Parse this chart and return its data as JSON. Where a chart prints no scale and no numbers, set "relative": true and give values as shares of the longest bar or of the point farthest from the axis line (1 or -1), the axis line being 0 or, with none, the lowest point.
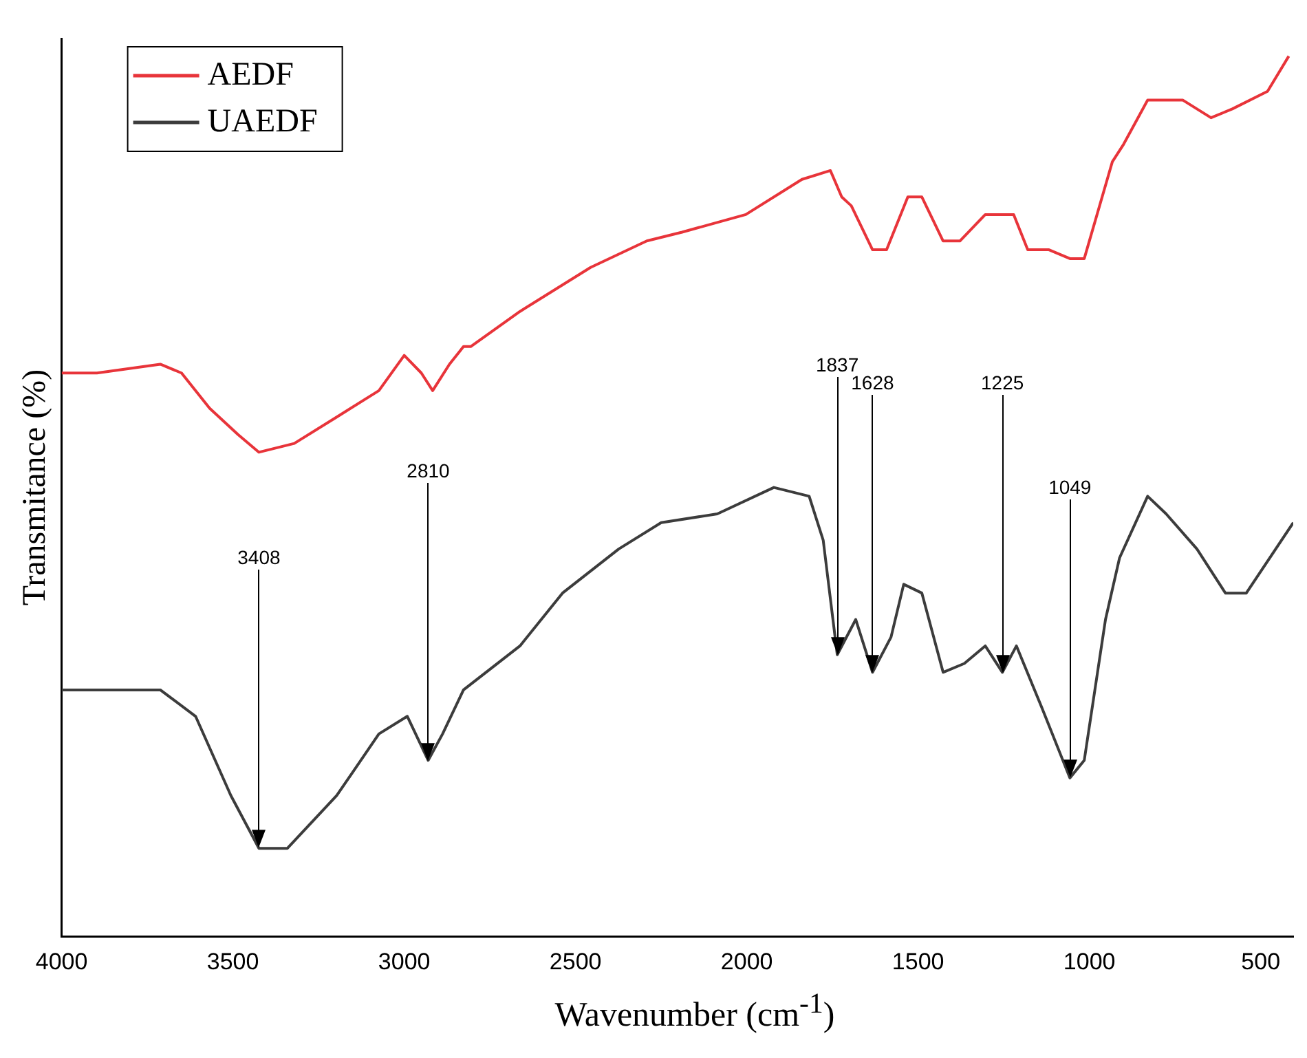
{
  "chart_data": {
    "type": "line",
    "xlabel": "Wavenumber (cm$^{-1}$)",
    "ylabel": "Transmitance (%)",
    "relative": true,
    "xlim": [
      4000,
      405
    ],
    "xticks": [
      4000,
      3500,
      3000,
      2500,
      2000,
      1500,
      1000,
      500
    ],
    "grid": false,
    "legend": "top left",
    "marker": "none",
    "line_style": "solid",
    "series": [
      {
        "name": "AEDF",
        "color": "#e8343a",
        "x": [
          4000,
          3897,
          3712,
          3650,
          3568,
          3485,
          3424,
          3321,
          3197,
          3074,
          3000,
          2950,
          2917,
          2868,
          2827,
          2806,
          2662,
          2456,
          2292,
          2189,
          2003,
          1839,
          1756,
          1723,
          1695,
          1633,
          1592,
          1530,
          1489,
          1427,
          1378,
          1304,
          1221,
          1180,
          1118,
          1057,
          1015,
          933,
          900,
          830,
          727,
          645,
          583,
          480,
          418
        ],
        "values": [
          0.64,
          0.64,
          0.65,
          0.64,
          0.6,
          0.57,
          0.55,
          0.56,
          0.59,
          0.62,
          0.66,
          0.64,
          0.62,
          0.65,
          0.67,
          0.67,
          0.71,
          0.76,
          0.79,
          0.8,
          0.82,
          0.86,
          0.87,
          0.84,
          0.83,
          0.78,
          0.78,
          0.84,
          0.84,
          0.79,
          0.79,
          0.82,
          0.82,
          0.78,
          0.78,
          0.77,
          0.77,
          0.88,
          0.9,
          0.95,
          0.95,
          0.93,
          0.94,
          0.96,
          1
        ]
      },
      {
        "name": "UAEDF",
        "color": "#3c3c3c",
        "x": [
          4000,
          3856,
          3712,
          3609,
          3506,
          3424,
          3341,
          3197,
          3074,
          2991,
          2930,
          2888,
          2827,
          2662,
          2538,
          2374,
          2250,
          2086,
          1921,
          1818,
          1777,
          1736,
          1682,
          1633,
          1579,
          1542,
          1489,
          1427,
          1365,
          1304,
          1254,
          1213,
          1139,
          1057,
          1015,
          953,
          912,
          830,
          776,
          686,
          603,
          542,
          405
        ],
        "values": [
          0.28,
          0.28,
          0.28,
          0.25,
          0.16,
          0.1,
          0.1,
          0.16,
          0.23,
          0.25,
          0.2,
          0.23,
          0.28,
          0.33,
          0.39,
          0.44,
          0.47,
          0.48,
          0.51,
          0.5,
          0.45,
          0.32,
          0.36,
          0.3,
          0.34,
          0.4,
          0.39,
          0.3,
          0.31,
          0.33,
          0.3,
          0.33,
          0.26,
          0.18,
          0.2,
          0.36,
          0.43,
          0.5,
          0.48,
          0.44,
          0.39,
          0.39,
          0.47
        ]
      }
    ],
    "annotations": [
      {
        "text": "3408",
        "x": 3424
      },
      {
        "text": "2810",
        "x": 2930
      },
      {
        "text": "1837",
        "x": 1736
      },
      {
        "text": "1628",
        "x": 1633
      },
      {
        "text": "1225",
        "x": 1254
      },
      {
        "text": "1049",
        "x": 1057
      }
    ]
  }
}
